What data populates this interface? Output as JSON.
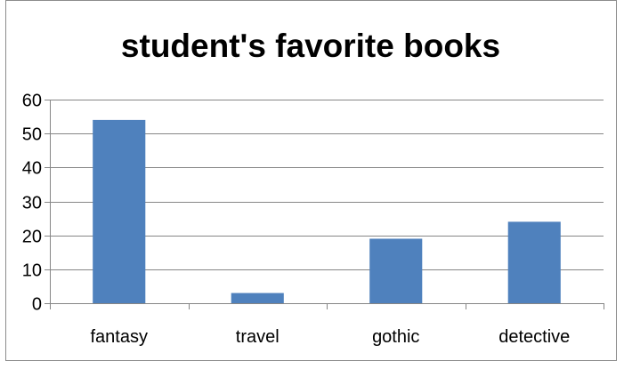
{
  "chart_data": {
    "type": "bar",
    "title": "student's favorite books",
    "xlabel": "",
    "ylabel": "",
    "categories": [
      "fantasy",
      "travel",
      "gothic",
      "detective"
    ],
    "values": [
      54,
      3,
      19,
      24
    ],
    "ylim": [
      0,
      60
    ],
    "yticks": [
      0,
      10,
      20,
      30,
      40,
      50,
      60
    ],
    "grid": true,
    "legend": "none",
    "bar_color": "#4F81BD"
  }
}
